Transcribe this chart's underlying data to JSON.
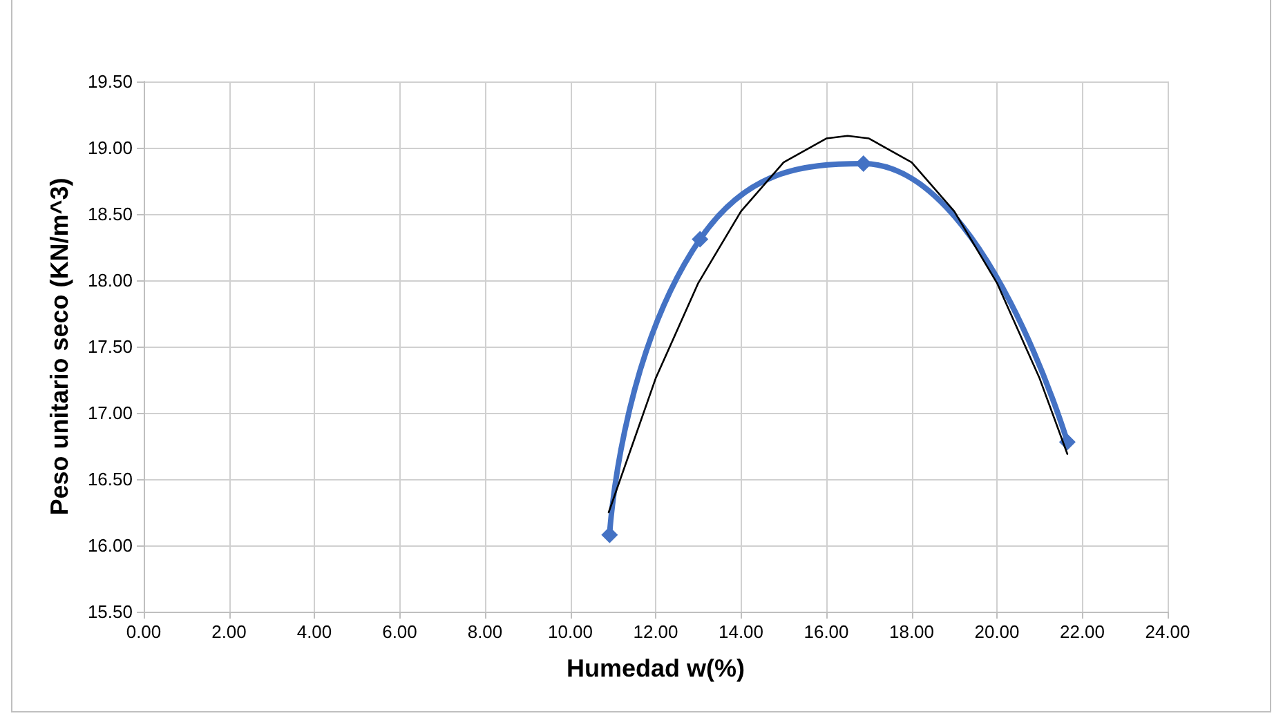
{
  "chart_data": {
    "type": "line",
    "xlabel": "Humedad w(%)",
    "ylabel": "Peso unitario seco (KN/m^3)",
    "xlim": [
      0,
      24
    ],
    "xticks": [
      {
        "value": 0,
        "label": "0.00"
      },
      {
        "value": 2,
        "label": "2.00"
      },
      {
        "value": 4,
        "label": "4.00"
      },
      {
        "value": 6,
        "label": "6.00"
      },
      {
        "value": 8,
        "label": "8.00"
      },
      {
        "value": 10,
        "label": "10.00"
      },
      {
        "value": 12,
        "label": "12.00"
      },
      {
        "value": 14,
        "label": "14.00"
      },
      {
        "value": 16,
        "label": "16.00"
      },
      {
        "value": 18,
        "label": "18.00"
      },
      {
        "value": 20,
        "label": "20.00"
      },
      {
        "value": 22,
        "label": "22.00"
      },
      {
        "value": 24,
        "label": "24.00"
      }
    ],
    "ylim": [
      15.5,
      19.5
    ],
    "yticks": [
      {
        "value": 15.5,
        "label": "15.50"
      },
      {
        "value": 16,
        "label": "16.00"
      },
      {
        "value": 16.5,
        "label": "16.50"
      },
      {
        "value": 17,
        "label": "17.00"
      },
      {
        "value": 17.5,
        "label": "17.50"
      },
      {
        "value": 18,
        "label": "18.00"
      },
      {
        "value": 18.5,
        "label": "18.50"
      },
      {
        "value": 19,
        "label": "19.00"
      },
      {
        "value": 19.5,
        "label": "19.50"
      }
    ],
    "grid": true,
    "series": [
      {
        "color": "#4472c4",
        "marker": "diamond",
        "x": [
          10.92,
          13.04,
          16.87,
          21.65
        ],
        "values": [
          16.08,
          18.31,
          18.88,
          16.78
        ]
      },
      {
        "color": "#000000",
        "marker": "none",
        "x": [
          10.9,
          12,
          13,
          14,
          15,
          16,
          16.5,
          17,
          18,
          19,
          20,
          21,
          21.65
        ],
        "values": [
          16.25,
          17.26,
          17.98,
          18.52,
          18.89,
          19.07,
          19.09,
          19.07,
          18.89,
          18.52,
          17.98,
          17.26,
          16.69
        ]
      }
    ]
  }
}
